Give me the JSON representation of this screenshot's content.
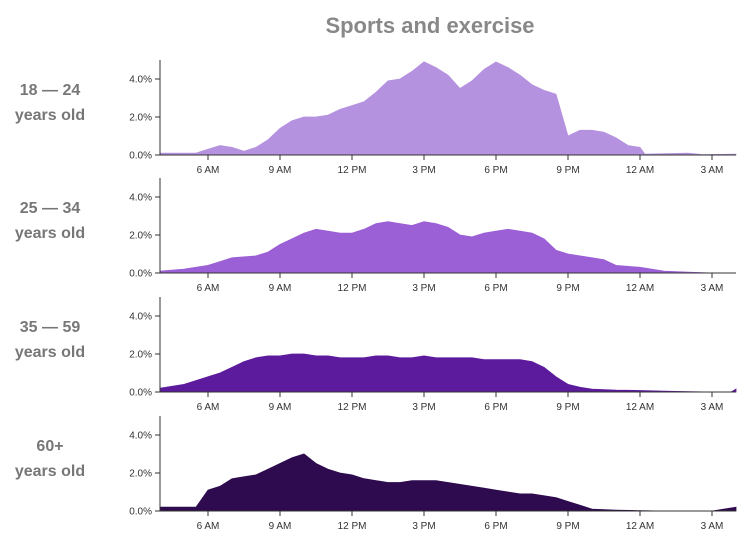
{
  "chart_data": {
    "type": "area",
    "title": "Sports and exercise",
    "x_ticks": [
      "6 AM",
      "9 AM",
      "12 PM",
      "3 PM",
      "6 PM",
      "9 PM",
      "12 AM",
      "3 AM"
    ],
    "x_tick_hours": [
      6,
      9,
      12,
      15,
      18,
      21,
      24,
      27
    ],
    "x_range": [
      4,
      28
    ],
    "y_ticks": [
      "0.0%",
      "2.0%",
      "4.0%"
    ],
    "y_tick_values": [
      0,
      2,
      4
    ],
    "ylim": [
      0,
      5
    ],
    "grid": false,
    "series": [
      {
        "label_line1": "18 — 24",
        "label_line2": "years old",
        "color": "#b592df",
        "points": [
          [
            4,
            0.1
          ],
          [
            5.5,
            0.1
          ],
          [
            6,
            0.3
          ],
          [
            6.5,
            0.5
          ],
          [
            7,
            0.4
          ],
          [
            7.5,
            0.2
          ],
          [
            8,
            0.4
          ],
          [
            8.5,
            0.8
          ],
          [
            9,
            1.4
          ],
          [
            9.5,
            1.8
          ],
          [
            10,
            2.0
          ],
          [
            10.5,
            2.0
          ],
          [
            11,
            2.1
          ],
          [
            11.5,
            2.4
          ],
          [
            12,
            2.6
          ],
          [
            12.5,
            2.8
          ],
          [
            13,
            3.3
          ],
          [
            13.5,
            3.9
          ],
          [
            14,
            4.0
          ],
          [
            14.5,
            4.4
          ],
          [
            15,
            4.9
          ],
          [
            15.5,
            4.6
          ],
          [
            16,
            4.2
          ],
          [
            16.5,
            3.5
          ],
          [
            17,
            3.9
          ],
          [
            17.5,
            4.5
          ],
          [
            18,
            4.9
          ],
          [
            18.5,
            4.6
          ],
          [
            19,
            4.2
          ],
          [
            19.5,
            3.7
          ],
          [
            20,
            3.4
          ],
          [
            20.5,
            3.2
          ],
          [
            21,
            1.0
          ],
          [
            21.5,
            1.3
          ],
          [
            22,
            1.3
          ],
          [
            22.5,
            1.2
          ],
          [
            23,
            0.9
          ],
          [
            23.5,
            0.5
          ],
          [
            24,
            0.4
          ],
          [
            24.2,
            0.05
          ],
          [
            26,
            0.1
          ],
          [
            26.6,
            0.02
          ],
          [
            28,
            0.05
          ]
        ]
      },
      {
        "label_line1": "25 — 34",
        "label_line2": "years old",
        "color": "#9b5fd6",
        "points": [
          [
            4,
            0.1
          ],
          [
            5,
            0.2
          ],
          [
            6,
            0.4
          ],
          [
            6.5,
            0.6
          ],
          [
            7,
            0.8
          ],
          [
            8,
            0.9
          ],
          [
            8.5,
            1.1
          ],
          [
            9,
            1.5
          ],
          [
            9.5,
            1.8
          ],
          [
            10,
            2.1
          ],
          [
            10.5,
            2.3
          ],
          [
            11,
            2.2
          ],
          [
            11.5,
            2.1
          ],
          [
            12,
            2.1
          ],
          [
            12.5,
            2.3
          ],
          [
            13,
            2.6
          ],
          [
            13.5,
            2.7
          ],
          [
            14,
            2.6
          ],
          [
            14.5,
            2.5
          ],
          [
            15,
            2.7
          ],
          [
            15.5,
            2.6
          ],
          [
            16,
            2.4
          ],
          [
            16.5,
            2.0
          ],
          [
            17,
            1.9
          ],
          [
            17.5,
            2.1
          ],
          [
            18,
            2.2
          ],
          [
            18.5,
            2.3
          ],
          [
            19,
            2.2
          ],
          [
            19.5,
            2.1
          ],
          [
            20,
            1.8
          ],
          [
            20.5,
            1.2
          ],
          [
            21,
            1.0
          ],
          [
            21.5,
            0.9
          ],
          [
            22,
            0.8
          ],
          [
            22.5,
            0.7
          ],
          [
            23,
            0.4
          ],
          [
            24,
            0.3
          ],
          [
            25,
            0.1
          ],
          [
            26,
            0.05
          ],
          [
            27,
            0.0
          ],
          [
            28,
            0.0
          ]
        ]
      },
      {
        "label_line1": "35 — 59",
        "label_line2": "years old",
        "color": "#5c1a9c",
        "points": [
          [
            4,
            0.2
          ],
          [
            5,
            0.4
          ],
          [
            6,
            0.8
          ],
          [
            6.5,
            1.0
          ],
          [
            7,
            1.3
          ],
          [
            7.5,
            1.6
          ],
          [
            8,
            1.8
          ],
          [
            8.5,
            1.9
          ],
          [
            9,
            1.9
          ],
          [
            9.5,
            2.0
          ],
          [
            10,
            2.0
          ],
          [
            10.5,
            1.9
          ],
          [
            11,
            1.9
          ],
          [
            11.5,
            1.8
          ],
          [
            12,
            1.8
          ],
          [
            12.5,
            1.8
          ],
          [
            13,
            1.9
          ],
          [
            13.5,
            1.9
          ],
          [
            14,
            1.8
          ],
          [
            14.5,
            1.8
          ],
          [
            15,
            1.9
          ],
          [
            15.5,
            1.8
          ],
          [
            16,
            1.8
          ],
          [
            16.5,
            1.8
          ],
          [
            17,
            1.8
          ],
          [
            17.5,
            1.7
          ],
          [
            18,
            1.7
          ],
          [
            18.5,
            1.7
          ],
          [
            19,
            1.7
          ],
          [
            19.5,
            1.6
          ],
          [
            20,
            1.3
          ],
          [
            20.5,
            0.8
          ],
          [
            21,
            0.4
          ],
          [
            21.5,
            0.25
          ],
          [
            22,
            0.15
          ],
          [
            23,
            0.1
          ],
          [
            24,
            0.08
          ],
          [
            25,
            0.05
          ],
          [
            26,
            0.02
          ],
          [
            27,
            0.0
          ],
          [
            27.8,
            0.0
          ],
          [
            28,
            0.15
          ]
        ]
      },
      {
        "label_line1": "60+",
        "label_line2": "years old",
        "color": "#2e0a4f",
        "points": [
          [
            4,
            0.2
          ],
          [
            5.5,
            0.2
          ],
          [
            6,
            1.1
          ],
          [
            6.5,
            1.3
          ],
          [
            7,
            1.7
          ],
          [
            7.5,
            1.8
          ],
          [
            8,
            1.9
          ],
          [
            8.5,
            2.2
          ],
          [
            9,
            2.5
          ],
          [
            9.5,
            2.8
          ],
          [
            10,
            3.0
          ],
          [
            10.5,
            2.5
          ],
          [
            11,
            2.2
          ],
          [
            11.5,
            2.0
          ],
          [
            12,
            1.9
          ],
          [
            12.5,
            1.7
          ],
          [
            13,
            1.6
          ],
          [
            13.5,
            1.5
          ],
          [
            14,
            1.5
          ],
          [
            14.5,
            1.6
          ],
          [
            15,
            1.6
          ],
          [
            15.5,
            1.6
          ],
          [
            16,
            1.5
          ],
          [
            16.5,
            1.4
          ],
          [
            17,
            1.3
          ],
          [
            17.5,
            1.2
          ],
          [
            18,
            1.1
          ],
          [
            18.5,
            1.0
          ],
          [
            19,
            0.9
          ],
          [
            19.5,
            0.9
          ],
          [
            20,
            0.8
          ],
          [
            20.5,
            0.7
          ],
          [
            21,
            0.5
          ],
          [
            21.5,
            0.3
          ],
          [
            22,
            0.1
          ],
          [
            23,
            0.05
          ],
          [
            24,
            0.02
          ],
          [
            25,
            0.0
          ],
          [
            27,
            0.0
          ],
          [
            28,
            0.2
          ]
        ]
      }
    ]
  }
}
